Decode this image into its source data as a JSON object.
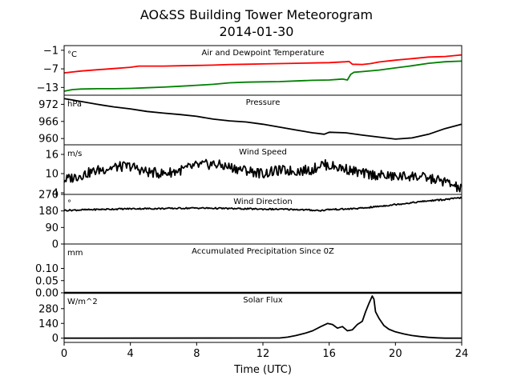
{
  "figure": {
    "title_line1": "AO&SS Building Tower Meteorogram",
    "title_line2": "2014-01-30",
    "xlabel": "Time (UTC)",
    "xticks": [
      "0",
      "4",
      "8",
      "12",
      "16",
      "20",
      "24"
    ],
    "xlim": [
      0,
      24
    ]
  },
  "chart_data": [
    {
      "type": "line",
      "title": "Air and Dewpoint Temperature",
      "ylabel": "°C",
      "ylim": [
        -15.5,
        0.5
      ],
      "yticks": [
        "−1",
        "−7",
        "−13"
      ],
      "ytick_values": [
        -1,
        -7,
        -13
      ],
      "series": [
        {
          "color": "#ff0000",
          "x": [
            0,
            1,
            2,
            3,
            4,
            4.5,
            5,
            6,
            7,
            8,
            9,
            10,
            11,
            12,
            13,
            14,
            15,
            16,
            17,
            17.2,
            17.4,
            18,
            18.5,
            19,
            20,
            21,
            22,
            23,
            24
          ],
          "y": [
            -8.3,
            -7.7,
            -7.3,
            -6.9,
            -6.5,
            -6.1,
            -6.1,
            -6.1,
            -6.0,
            -5.9,
            -5.8,
            -5.6,
            -5.5,
            -5.4,
            -5.3,
            -5.2,
            -5.1,
            -5.0,
            -4.7,
            -4.6,
            -5.5,
            -5.6,
            -5.3,
            -4.8,
            -4.2,
            -3.7,
            -3.2,
            -3.0,
            -2.5
          ]
        },
        {
          "color": "#008000",
          "x": [
            0,
            0.5,
            1,
            2,
            3,
            4,
            5,
            6,
            7,
            8,
            9,
            10,
            11,
            12,
            13,
            14,
            15,
            16,
            16.8,
            17.1,
            17.3,
            17.5,
            18,
            19,
            20,
            21,
            22,
            23,
            24
          ],
          "y": [
            -14.2,
            -13.7,
            -13.5,
            -13.4,
            -13.4,
            -13.3,
            -13.1,
            -12.9,
            -12.6,
            -12.3,
            -12.0,
            -11.5,
            -11.3,
            -11.2,
            -11.1,
            -10.9,
            -10.7,
            -10.6,
            -10.3,
            -10.6,
            -8.8,
            -8.1,
            -7.9,
            -7.4,
            -6.7,
            -6.0,
            -5.2,
            -4.7,
            -4.5
          ]
        }
      ]
    },
    {
      "type": "line",
      "title": "Pressure",
      "ylabel": "hPa",
      "ylim": [
        957.8,
        975.2
      ],
      "yticks": [
        "972",
        "966",
        "960"
      ],
      "ytick_values": [
        972,
        966,
        960
      ],
      "series": [
        {
          "color": "#000000",
          "x": [
            0,
            1,
            2,
            3,
            4,
            5,
            6,
            7,
            8,
            9,
            10,
            11,
            12,
            13,
            14,
            15,
            15.7,
            16,
            17,
            18,
            19,
            20,
            21,
            22,
            23,
            24
          ],
          "y": [
            974.0,
            973.0,
            972.0,
            971.1,
            970.4,
            969.5,
            968.9,
            968.4,
            967.8,
            966.8,
            966.2,
            965.8,
            965.0,
            964.0,
            963.0,
            962.0,
            961.5,
            962.2,
            962.0,
            961.2,
            960.5,
            959.8,
            960.2,
            961.5,
            963.5,
            965.0
          ]
        }
      ]
    },
    {
      "type": "line",
      "title": "Wind Speed",
      "ylabel": "m/s",
      "ylim": [
        3.5,
        19
      ],
      "yticks": [
        "16",
        "10",
        "4"
      ],
      "ytick_values": [
        16,
        10,
        4
      ],
      "series": [
        {
          "color": "#000000",
          "x": [
            0,
            1,
            2,
            3,
            4,
            5,
            6,
            7,
            8,
            9,
            10,
            11,
            12,
            13,
            14,
            15,
            15.5,
            16,
            17,
            18,
            19,
            20,
            21,
            22,
            23,
            24
          ],
          "y": [
            8.0,
            9.5,
            11.0,
            12.0,
            12.3,
            10.5,
            10.0,
            11.0,
            12.5,
            13.0,
            12.0,
            11.0,
            10.0,
            11.0,
            10.8,
            11.2,
            13.0,
            12.5,
            11.5,
            10.0,
            9.5,
            9.0,
            9.3,
            8.5,
            7.5,
            5.0
          ]
        }
      ]
    },
    {
      "type": "line",
      "title": "Wind Direction",
      "ylabel": "°",
      "ylim": [
        0,
        270
      ],
      "yticks": [
        "270",
        "180",
        "90",
        "0"
      ],
      "ytick_values": [
        270,
        180,
        90,
        0
      ],
      "series": [
        {
          "color": "#000000",
          "x": [
            0,
            2,
            4,
            6,
            8,
            10,
            12,
            14,
            15.5,
            16,
            17,
            18,
            19,
            20,
            21,
            22,
            23,
            24
          ],
          "y": [
            183,
            188,
            192,
            193,
            196,
            193,
            190,
            188,
            182,
            188,
            190,
            195,
            205,
            215,
            225,
            235,
            242,
            252
          ]
        }
      ]
    },
    {
      "type": "line",
      "title": "Accumulated Precipitation Since 0Z",
      "ylabel": "mm",
      "ylim": [
        0,
        0.2
      ],
      "yticks": [
        "0.10",
        "0.05",
        "0.00"
      ],
      "ytick_values": [
        0.1,
        0.05,
        0.0
      ],
      "series": [
        {
          "color": "#000000",
          "x": [
            0,
            24
          ],
          "y": [
            0,
            0
          ]
        }
      ]
    },
    {
      "type": "line",
      "title": "Solar Flux",
      "ylabel": "W/m^2",
      "ylim": [
        -40,
        430
      ],
      "yticks": [
        "280",
        "140",
        "0"
      ],
      "ytick_values": [
        280,
        140,
        0
      ],
      "series": [
        {
          "color": "#000000",
          "x": [
            0,
            13,
            13.5,
            14,
            14.5,
            15,
            15.5,
            15.9,
            16.2,
            16.5,
            16.8,
            17.1,
            17.4,
            17.7,
            18,
            18.2,
            18.4,
            18.6,
            18.7,
            18.8,
            19.0,
            19.3,
            19.6,
            20,
            20.5,
            21,
            21.5,
            22,
            22.5,
            23,
            24
          ],
          "y": [
            0,
            2,
            10,
            25,
            45,
            70,
            110,
            140,
            130,
            95,
            110,
            70,
            80,
            130,
            160,
            250,
            330,
            400,
            370,
            250,
            190,
            120,
            85,
            60,
            40,
            25,
            15,
            8,
            3,
            0,
            0
          ]
        }
      ]
    }
  ]
}
